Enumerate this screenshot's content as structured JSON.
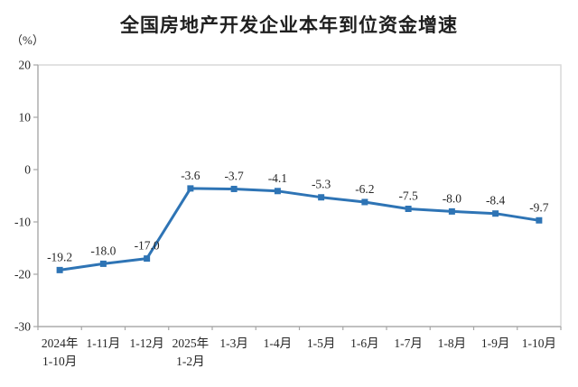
{
  "chart_data": {
    "type": "line",
    "title": "全国房地产开发企业本年到位资金增速",
    "unit_label": "（%）",
    "categories": [
      "2024年\n1-10月",
      "1-11月",
      "1-12月",
      "2025年\n1-2月",
      "1-3月",
      "1-4月",
      "1-5月",
      "1-6月",
      "1-7月",
      "1-8月",
      "1-9月",
      "1-10月"
    ],
    "values": [
      -19.2,
      -18.0,
      -17.0,
      -3.6,
      -3.7,
      -4.1,
      -5.3,
      -6.2,
      -7.5,
      -8.0,
      -8.4,
      -9.7
    ],
    "data_labels": [
      "-19.2",
      "-18.0",
      "-17.0",
      "-3.6",
      "-3.7",
      "-4.1",
      "-5.3",
      "-6.2",
      "-7.5",
      "-8.0",
      "-8.4",
      "-9.7"
    ],
    "xlabel": "",
    "ylabel": "",
    "ylim": [
      -30,
      20
    ],
    "yticks": [
      20,
      10,
      0,
      -10,
      -20,
      -30
    ],
    "grid": false,
    "legend": "none",
    "line_color": "#2E74B5",
    "marker": "square",
    "axis_color": "#A6A6A6",
    "border_color": "#D9D9D9",
    "text_color": "#262626"
  }
}
